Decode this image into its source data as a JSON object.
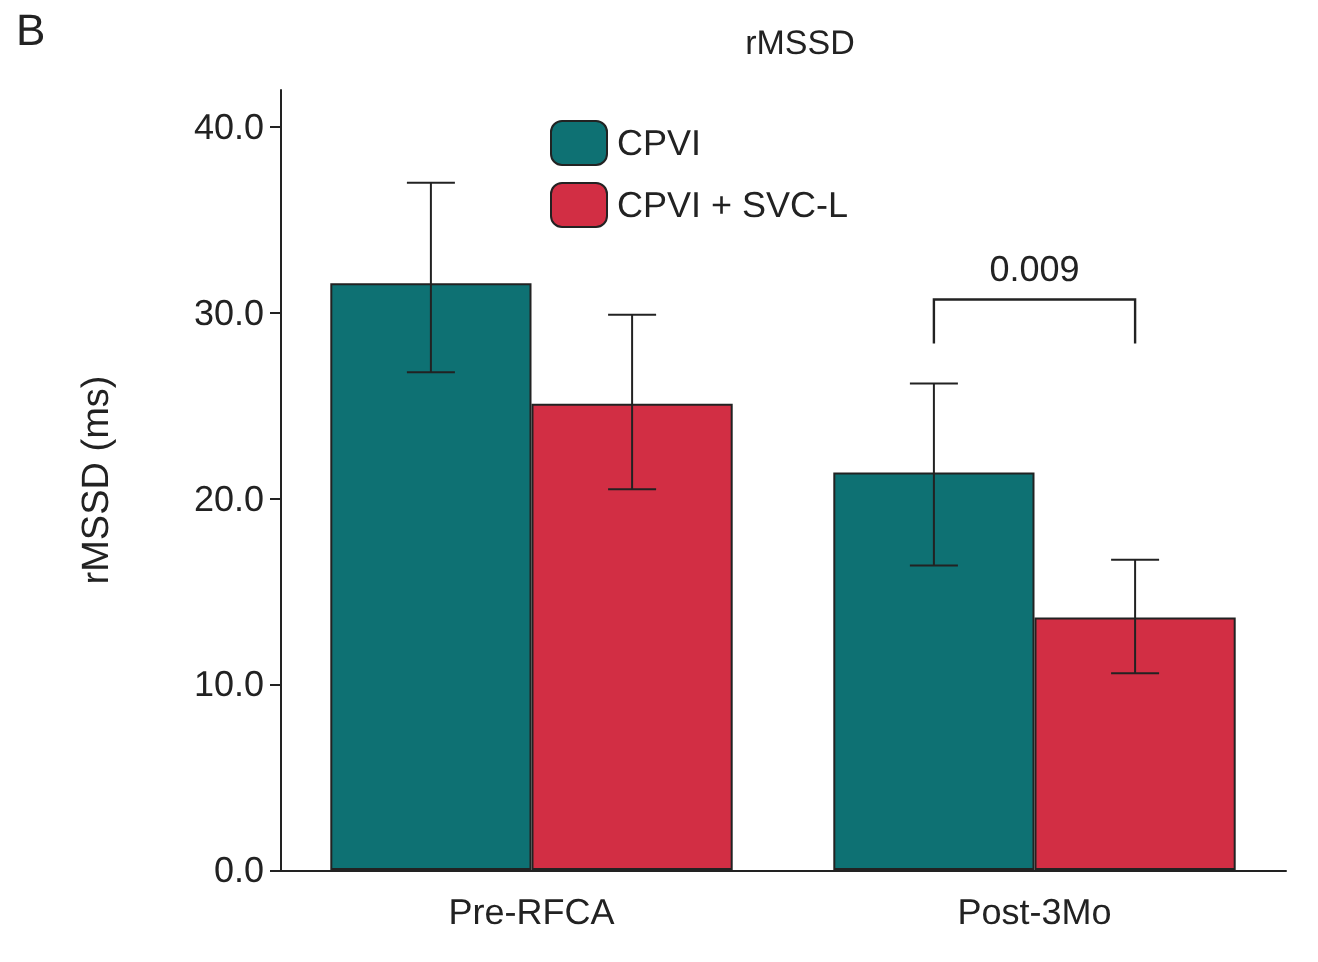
{
  "chart_data": {
    "type": "bar",
    "title": "rMSSD",
    "ylabel": "rMSSD (ms)",
    "categories": [
      "Pre-RFCA",
      "Post-3Mo"
    ],
    "series": [
      {
        "name": "CPVI",
        "color": "#0e7173",
        "values": [
          31.6,
          21.4
        ],
        "errors": [
          [
            26.8,
            37.0
          ],
          [
            16.4,
            26.2
          ]
        ]
      },
      {
        "name": "CPVI + SVC-L",
        "color": "#d22e44",
        "values": [
          25.1,
          13.6
        ],
        "errors": [
          [
            20.5,
            29.9
          ],
          [
            10.6,
            16.7
          ]
        ]
      }
    ],
    "ylim": [
      0,
      42
    ],
    "yticks": [
      {
        "value": 0,
        "label": "0.0"
      },
      {
        "value": 10,
        "label": "10.0"
      },
      {
        "value": 20,
        "label": "20.0"
      },
      {
        "value": 30,
        "label": "30.0"
      },
      {
        "value": 40,
        "label": "40.0"
      }
    ],
    "grid": false,
    "legend": "top",
    "annotations": [
      "B",
      "0.009"
    ]
  }
}
